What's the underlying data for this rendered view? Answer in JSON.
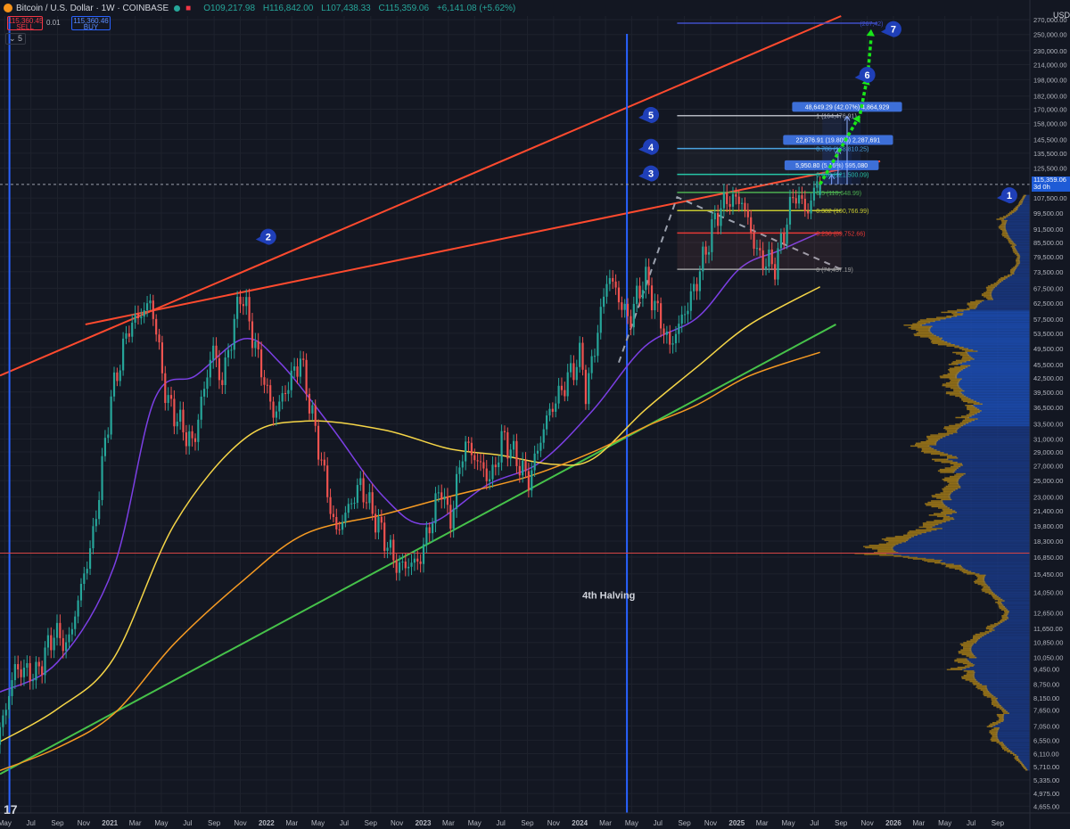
{
  "header": {
    "symbol": "Bitcoin / U.S. Dollar · 1W · COINBASE",
    "open": "O109,217.98",
    "high": "H116,842.00",
    "low": "L107,438.33",
    "close": "C115,359.06",
    "change": "+6,141.08 (+5.62%)"
  },
  "trade": {
    "sell_price": "115,360.45",
    "sell_label": "SELL",
    "spread": "0.01",
    "buy_price": "115,360.46",
    "buy_label": "BUY"
  },
  "indicator_toggle": "5",
  "currency": "USD",
  "last_price": {
    "value": "115,359.06",
    "countdown": "3d 0h"
  },
  "colors": {
    "bg": "#131722",
    "grid": "#1e222d",
    "up": "#26a69a",
    "down": "#ef5350",
    "ma_purple": "#7b3fe4",
    "ma_yellow": "#f5d547",
    "ma_orange": "#f59a23",
    "channel_red": "#ff4a2e",
    "support_green": "#46c24a",
    "halving_blue": "#2962ff",
    "projection_green": "#19e619",
    "badge_blue": "#1f3fb8"
  },
  "chart_data": {
    "type": "candlestick",
    "scale": "log",
    "ylim": [
      4500,
      275000
    ],
    "xlim": [
      "2020-04-20",
      "2026-11-15"
    ],
    "y_ticks": [
      "270,000.00",
      "250,000.00",
      "230,000.00",
      "214,000.00",
      "198,000.00",
      "182,000.00",
      "170,000.00",
      "158,000.00",
      "145,500.00",
      "135,500.00",
      "125,500.00",
      "107,500.00",
      "99,500.00",
      "91,500.00",
      "85,500.00",
      "79,500.00",
      "73,500.00",
      "67,500.00",
      "62,500.00",
      "57,500.00",
      "53,500.00",
      "49,500.00",
      "45,500.00",
      "42,500.00",
      "39,500.00",
      "36,500.00",
      "33,500.00",
      "31,000.00",
      "29,000.00",
      "27,000.00",
      "25,000.00",
      "23,000.00",
      "21,400.00",
      "19,800.00",
      "18,300.00",
      "16,850.00",
      "15,450.00",
      "14,050.00",
      "12,650.00",
      "11,650.00",
      "10,850.00",
      "10,050.00",
      "9,450.00",
      "8,750.00",
      "8,150.00",
      "7,650.00",
      "7,050.00",
      "6,550.00",
      "6,110.00",
      "5,710.00",
      "5,335.00",
      "4,975.00",
      "4,655.00"
    ],
    "x_ticks": [
      {
        "label": "May",
        "date": "2020-05-01"
      },
      {
        "label": "Jul",
        "date": "2020-07-01"
      },
      {
        "label": "Sep",
        "date": "2020-09-01"
      },
      {
        "label": "Nov",
        "date": "2020-11-01"
      },
      {
        "label": "2021",
        "date": "2021-01-01"
      },
      {
        "label": "Mar",
        "date": "2021-03-01"
      },
      {
        "label": "May",
        "date": "2021-05-01"
      },
      {
        "label": "Jul",
        "date": "2021-07-01"
      },
      {
        "label": "Sep",
        "date": "2021-09-01"
      },
      {
        "label": "Nov",
        "date": "2021-11-01"
      },
      {
        "label": "2022",
        "date": "2022-01-01"
      },
      {
        "label": "Mar",
        "date": "2022-03-01"
      },
      {
        "label": "May",
        "date": "2022-05-01"
      },
      {
        "label": "Jul",
        "date": "2022-07-01"
      },
      {
        "label": "Sep",
        "date": "2022-09-01"
      },
      {
        "label": "Nov",
        "date": "2022-11-01"
      },
      {
        "label": "2023",
        "date": "2023-01-01"
      },
      {
        "label": "Mar",
        "date": "2023-03-01"
      },
      {
        "label": "May",
        "date": "2023-05-01"
      },
      {
        "label": "Jul",
        "date": "2023-07-01"
      },
      {
        "label": "Sep",
        "date": "2023-09-01"
      },
      {
        "label": "Nov",
        "date": "2023-11-01"
      },
      {
        "label": "2024",
        "date": "2024-01-01"
      },
      {
        "label": "Mar",
        "date": "2024-03-01"
      },
      {
        "label": "May",
        "date": "2024-05-01"
      },
      {
        "label": "Jul",
        "date": "2024-07-01"
      },
      {
        "label": "Sep",
        "date": "2024-09-01"
      },
      {
        "label": "Nov",
        "date": "2024-11-01"
      },
      {
        "label": "2025",
        "date": "2025-01-01"
      },
      {
        "label": "Mar",
        "date": "2025-03-01"
      },
      {
        "label": "May",
        "date": "2025-05-01"
      },
      {
        "label": "Jul",
        "date": "2025-07-01"
      },
      {
        "label": "Sep",
        "date": "2025-09-01"
      },
      {
        "label": "Nov",
        "date": "2025-11-01"
      },
      {
        "label": "2026",
        "date": "2026-01-01"
      },
      {
        "label": "Mar",
        "date": "2026-03-01"
      },
      {
        "label": "May",
        "date": "2026-05-01"
      },
      {
        "label": "Jul",
        "date": "2026-07-01"
      },
      {
        "label": "Sep",
        "date": "2026-09-01"
      }
    ],
    "price_path": [
      [
        "2020-04-20",
        6400
      ],
      [
        "2020-06-01",
        9500
      ],
      [
        "2020-07-20",
        9200
      ],
      [
        "2020-09-01",
        11500
      ],
      [
        "2020-10-01",
        10600
      ],
      [
        "2020-12-01",
        19000
      ],
      [
        "2021-01-10",
        38000
      ],
      [
        "2021-02-20",
        55000
      ],
      [
        "2021-04-15",
        63000
      ],
      [
        "2021-05-20",
        38000
      ],
      [
        "2021-07-20",
        30000
      ],
      [
        "2021-09-05",
        50000
      ],
      [
        "2021-09-25",
        41000
      ],
      [
        "2021-11-10",
        67000
      ],
      [
        "2021-12-20",
        47000
      ],
      [
        "2022-01-25",
        35000
      ],
      [
        "2022-03-28",
        47000
      ],
      [
        "2022-05-12",
        29000
      ],
      [
        "2022-06-18",
        19000
      ],
      [
        "2022-08-14",
        24500
      ],
      [
        "2022-10-01",
        19400
      ],
      [
        "2022-11-10",
        16000
      ],
      [
        "2022-12-30",
        16500
      ],
      [
        "2023-02-20",
        24500
      ],
      [
        "2023-03-10",
        19800
      ],
      [
        "2023-04-14",
        30500
      ],
      [
        "2023-06-15",
        25000
      ],
      [
        "2023-07-13",
        31500
      ],
      [
        "2023-09-11",
        25000
      ],
      [
        "2023-10-25",
        35000
      ],
      [
        "2024-01-11",
        48000
      ],
      [
        "2024-01-23",
        39000
      ],
      [
        "2024-03-14",
        73000
      ],
      [
        "2024-05-01",
        57000
      ],
      [
        "2024-06-07",
        71900
      ],
      [
        "2024-08-05",
        50000
      ],
      [
        "2024-09-28",
        66000
      ],
      [
        "2024-11-22",
        99000
      ],
      [
        "2024-12-17",
        107000
      ],
      [
        "2025-01-20",
        106000
      ],
      [
        "2025-02-28",
        79000
      ],
      [
        "2025-04-08",
        76000
      ],
      [
        "2025-05-22",
        111000
      ],
      [
        "2025-06-22",
        100000
      ],
      [
        "2025-07-14",
        116842
      ]
    ],
    "last_candle": {
      "date": "2025-07-14",
      "open": 109217.98,
      "high": 116842.0,
      "low": 107438.33,
      "close": 115359.06
    },
    "moving_averages": [
      {
        "color": "#7b3fe4",
        "points": [
          [
            "2020-04-20",
            8400
          ],
          [
            "2020-09-01",
            9800
          ],
          [
            "2021-01-10",
            16000
          ],
          [
            "2021-04-15",
            38000
          ],
          [
            "2021-07-20",
            43000
          ],
          [
            "2021-11-10",
            52000
          ],
          [
            "2022-02-01",
            46000
          ],
          [
            "2022-06-01",
            33000
          ],
          [
            "2022-10-01",
            23000
          ],
          [
            "2023-01-10",
            20000
          ],
          [
            "2023-06-01",
            24500
          ],
          [
            "2023-10-01",
            27500
          ],
          [
            "2024-02-01",
            36000
          ],
          [
            "2024-06-01",
            50000
          ],
          [
            "2024-10-01",
            58000
          ],
          [
            "2025-01-10",
            75000
          ],
          [
            "2025-04-10",
            82000
          ],
          [
            "2025-07-14",
            90000
          ]
        ]
      },
      {
        "color": "#f5d547",
        "points": [
          [
            "2020-04-20",
            6500
          ],
          [
            "2020-09-01",
            7700
          ],
          [
            "2021-01-10",
            10000
          ],
          [
            "2021-06-01",
            20000
          ],
          [
            "2021-11-10",
            31000
          ],
          [
            "2022-04-01",
            34000
          ],
          [
            "2022-10-01",
            32500
          ],
          [
            "2023-03-01",
            29500
          ],
          [
            "2023-07-01",
            28500
          ],
          [
            "2023-11-01",
            27200
          ],
          [
            "2024-02-01",
            28000
          ],
          [
            "2024-06-01",
            36000
          ],
          [
            "2024-10-01",
            45000
          ],
          [
            "2025-02-01",
            56000
          ],
          [
            "2025-07-14",
            68000
          ]
        ]
      },
      {
        "color": "#f59a23",
        "points": [
          [
            "2020-04-20",
            5600
          ],
          [
            "2020-09-01",
            6300
          ],
          [
            "2021-01-10",
            7500
          ],
          [
            "2021-06-01",
            10800
          ],
          [
            "2021-11-10",
            15000
          ],
          [
            "2022-04-01",
            19000
          ],
          [
            "2022-10-01",
            21000
          ],
          [
            "2023-03-01",
            23000
          ],
          [
            "2023-09-01",
            25500
          ],
          [
            "2024-02-01",
            29000
          ],
          [
            "2024-06-01",
            33000
          ],
          [
            "2024-10-01",
            37000
          ],
          [
            "2025-02-01",
            43000
          ],
          [
            "2025-07-14",
            48500
          ]
        ]
      }
    ],
    "trendlines": [
      {
        "color": "#ff4a2e",
        "from": [
          "2020-04-20",
          43000
        ],
        "to": [
          "2025-09-01",
          275000
        ]
      },
      {
        "color": "#ff4a2e",
        "from": [
          "2020-11-05",
          56000
        ],
        "to": [
          "2025-12-01",
          130000
        ]
      },
      {
        "color": "#46c24a",
        "from": [
          "2020-04-20",
          5500
        ],
        "to": [
          "2025-08-20",
          56000
        ]
      }
    ],
    "verticals": [
      {
        "color": "#2962ff",
        "date": "2020-05-12"
      },
      {
        "color": "#2962ff",
        "date": "2024-04-20",
        "label": "4th Halving"
      }
    ],
    "horizontal_levels": [
      {
        "price": 17200,
        "color": "#d64545"
      },
      {
        "price": 115359.06,
        "color": "#9aa0ad",
        "style": "dashed"
      }
    ],
    "zigzag": [
      [
        "2024-04-01",
        46000
      ],
      [
        "2024-08-15",
        108000
      ],
      [
        "2025-09-01",
        74437.19
      ]
    ],
    "fib": {
      "from": "2024-08-15",
      "to": "2025-09-01",
      "levels": [
        {
          "ratio": 1.0,
          "price": 164476.91,
          "label": "1 (164,476.91)",
          "color": "#b2b5be"
        },
        {
          "ratio": 0.786,
          "price": 138810.25,
          "label": "0.786 (138,810.25)",
          "color": "#4aa3df"
        },
        {
          "ratio": 0.618,
          "price": 121500.09,
          "label": "0.618 (121,500.09)",
          "color": "#26c6a6"
        },
        {
          "ratio": 0.5,
          "price": 110648.99,
          "label": "0.5 (110,648.99)",
          "color": "#4caf50"
        },
        {
          "ratio": 0.382,
          "price": 100766.99,
          "label": "0.382 (100,766.99)",
          "color": "#c6c830"
        },
        {
          "ratio": 0.236,
          "price": 89752.66,
          "label": "0.236 (89,752.66)",
          "color": "#e53935"
        },
        {
          "ratio": 0,
          "price": 74437.19,
          "label": "0 (74,437.19)",
          "color": "#9e9e9e"
        }
      ],
      "extension": {
        "price": 265000,
        "label": "(267,42)",
        "color": "#3f4fc8"
      }
    },
    "measures": [
      {
        "label": "5,950.80 (5.16%) 595,080",
        "date": "2025-08-10",
        "from_price": 115400,
        "to_price": 121350
      },
      {
        "label": "22,876.91 (19.80%) 2,287,691",
        "date": "2025-08-25",
        "from_price": 115400,
        "to_price": 138280
      },
      {
        "label": "48,649.29 (42.07%) 4,864,929",
        "date": "2025-09-15",
        "from_price": 115400,
        "to_price": 164000
      }
    ],
    "projection_path": [
      [
        "2025-07-14",
        115400
      ],
      [
        "2025-10-15",
        165000
      ],
      [
        "2025-11-01",
        200000
      ],
      [
        "2025-11-10",
        257000
      ]
    ],
    "badges": [
      {
        "n": "1",
        "date": "2026-09-28",
        "price": 109000
      },
      {
        "n": "2",
        "date": "2022-01-05",
        "price": 88000
      },
      {
        "n": "3",
        "date": "2024-06-15",
        "price": 122000
      },
      {
        "n": "4",
        "date": "2024-06-15",
        "price": 140000
      },
      {
        "n": "5",
        "date": "2024-06-15",
        "price": 165000
      },
      {
        "n": "6",
        "date": "2025-11-01",
        "price": 203000
      },
      {
        "n": "7",
        "date": "2026-01-01",
        "price": 257000
      }
    ],
    "volume_profile": {
      "bins": [
        [
          5600,
          0.03
        ],
        [
          6000,
          0.08
        ],
        [
          6500,
          0.18
        ],
        [
          7000,
          0.24
        ],
        [
          7500,
          0.16
        ],
        [
          8100,
          0.2
        ],
        [
          8700,
          0.28
        ],
        [
          9400,
          0.44
        ],
        [
          10000,
          0.38
        ],
        [
          10800,
          0.32
        ],
        [
          11600,
          0.22
        ],
        [
          12400,
          0.16
        ],
        [
          13400,
          0.18
        ],
        [
          14400,
          0.24
        ],
        [
          15400,
          0.3
        ],
        [
          16400,
          0.62
        ],
        [
          17200,
          0.86
        ],
        [
          18300,
          0.7
        ],
        [
          19600,
          0.58
        ],
        [
          21000,
          0.56
        ],
        [
          22600,
          0.5
        ],
        [
          24200,
          0.4
        ],
        [
          26000,
          0.46
        ],
        [
          28000,
          0.54
        ],
        [
          30000,
          0.58
        ],
        [
          32200,
          0.42
        ],
        [
          34500,
          0.38
        ],
        [
          37000,
          0.36
        ],
        [
          39600,
          0.4
        ],
        [
          42400,
          0.42
        ],
        [
          45400,
          0.46
        ],
        [
          48600,
          0.38
        ],
        [
          52000,
          0.52
        ],
        [
          55600,
          0.62
        ],
        [
          59400,
          0.48
        ],
        [
          63500,
          0.26
        ],
        [
          68000,
          0.2
        ],
        [
          73000,
          0.1
        ],
        [
          78000,
          0.08
        ],
        [
          84000,
          0.1
        ],
        [
          90000,
          0.14
        ],
        [
          96000,
          0.16
        ],
        [
          103000,
          0.08
        ],
        [
          110000,
          0.02
        ]
      ],
      "value_area": [
        33000,
        60000
      ]
    }
  }
}
